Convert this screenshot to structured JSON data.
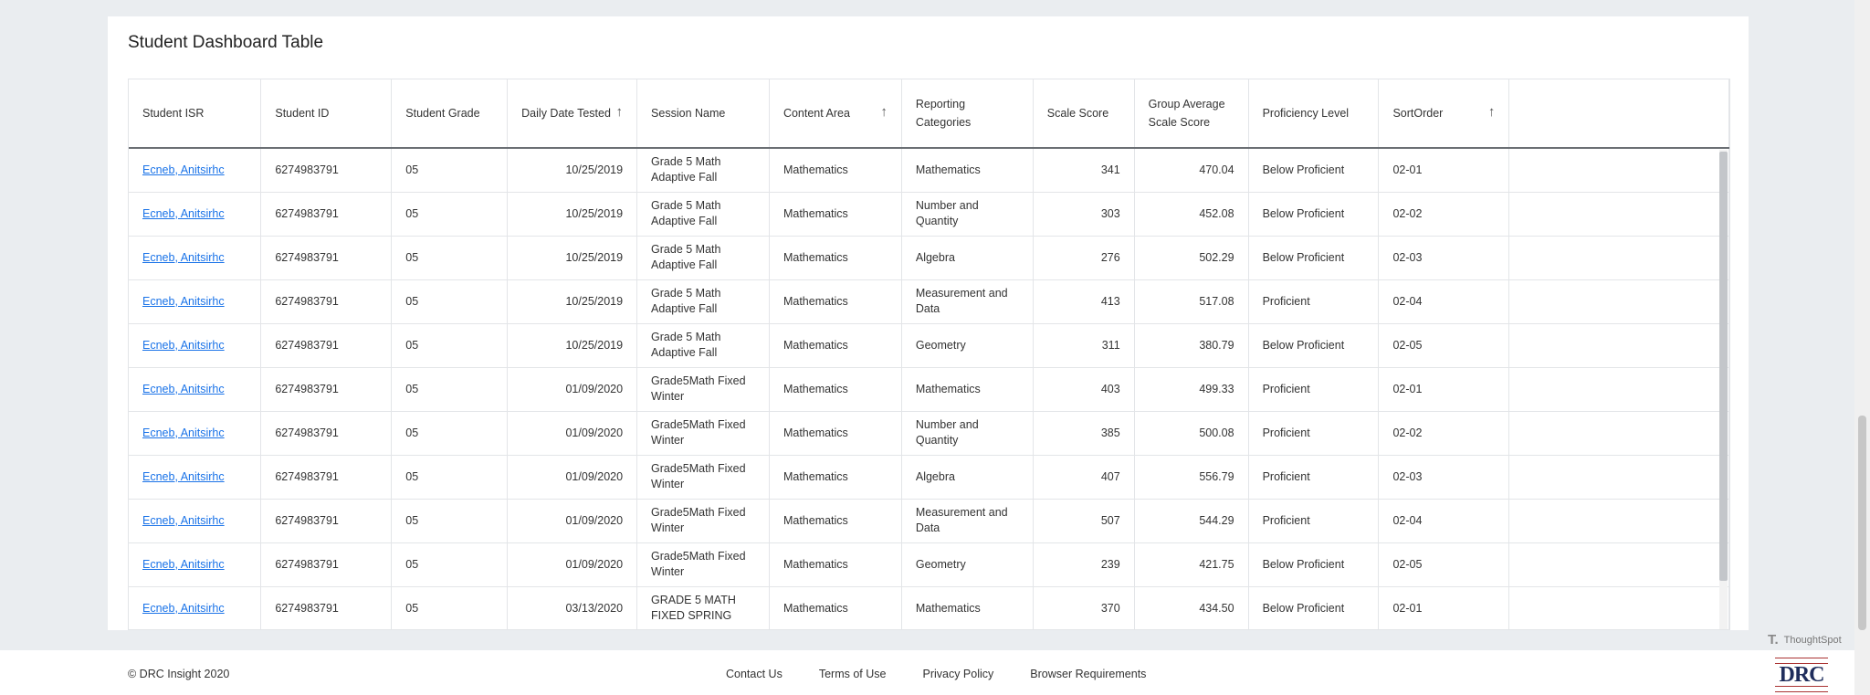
{
  "panel": {
    "title": "Student Dashboard Table"
  },
  "table": {
    "columns": [
      {
        "label": "Student ISR",
        "sort": ""
      },
      {
        "label": "Student ID",
        "sort": ""
      },
      {
        "label": "Student Grade",
        "sort": ""
      },
      {
        "label": "Daily Date Tested",
        "sort": "asc"
      },
      {
        "label": "Session Name",
        "sort": ""
      },
      {
        "label": "Content Area",
        "sort": "asc"
      },
      {
        "label": "Reporting Categories",
        "sort": ""
      },
      {
        "label": "Scale Score",
        "sort": ""
      },
      {
        "label": "Group Average Scale Score",
        "sort": ""
      },
      {
        "label": "Proficiency Level",
        "sort": ""
      },
      {
        "label": "SortOrder",
        "sort": "asc"
      },
      {
        "label": "",
        "sort": ""
      }
    ],
    "rows": [
      [
        "Ecneb, Anitsirhc",
        "6274983791",
        "05",
        "10/25/2019",
        "Grade 5 Math Adaptive Fall",
        "Mathematics",
        "Mathematics",
        "341",
        "470.04",
        "Below Proficient",
        "02-01"
      ],
      [
        "Ecneb, Anitsirhc",
        "6274983791",
        "05",
        "10/25/2019",
        "Grade 5 Math Adaptive Fall",
        "Mathematics",
        "Number and Quantity",
        "303",
        "452.08",
        "Below Proficient",
        "02-02"
      ],
      [
        "Ecneb, Anitsirhc",
        "6274983791",
        "05",
        "10/25/2019",
        "Grade 5 Math Adaptive Fall",
        "Mathematics",
        "Algebra",
        "276",
        "502.29",
        "Below Proficient",
        "02-03"
      ],
      [
        "Ecneb, Anitsirhc",
        "6274983791",
        "05",
        "10/25/2019",
        "Grade 5 Math Adaptive Fall",
        "Mathematics",
        "Measurement and Data",
        "413",
        "517.08",
        "Proficient",
        "02-04"
      ],
      [
        "Ecneb, Anitsirhc",
        "6274983791",
        "05",
        "10/25/2019",
        "Grade 5 Math Adaptive Fall",
        "Mathematics",
        "Geometry",
        "311",
        "380.79",
        "Below Proficient",
        "02-05"
      ],
      [
        "Ecneb, Anitsirhc",
        "6274983791",
        "05",
        "01/09/2020",
        "Grade5Math Fixed Winter",
        "Mathematics",
        "Mathematics",
        "403",
        "499.33",
        "Proficient",
        "02-01"
      ],
      [
        "Ecneb, Anitsirhc",
        "6274983791",
        "05",
        "01/09/2020",
        "Grade5Math Fixed Winter",
        "Mathematics",
        "Number and Quantity",
        "385",
        "500.08",
        "Proficient",
        "02-02"
      ],
      [
        "Ecneb, Anitsirhc",
        "6274983791",
        "05",
        "01/09/2020",
        "Grade5Math Fixed Winter",
        "Mathematics",
        "Algebra",
        "407",
        "556.79",
        "Proficient",
        "02-03"
      ],
      [
        "Ecneb, Anitsirhc",
        "6274983791",
        "05",
        "01/09/2020",
        "Grade5Math Fixed Winter",
        "Mathematics",
        "Measurement and Data",
        "507",
        "544.29",
        "Proficient",
        "02-04"
      ],
      [
        "Ecneb, Anitsirhc",
        "6274983791",
        "05",
        "01/09/2020",
        "Grade5Math Fixed Winter",
        "Mathematics",
        "Geometry",
        "239",
        "421.75",
        "Below Proficient",
        "02-05"
      ],
      [
        "Ecneb, Anitsirhc",
        "6274983791",
        "05",
        "03/13/2020",
        "GRADE 5 MATH FIXED SPRING",
        "Mathematics",
        "Mathematics",
        "370",
        "434.50",
        "Below Proficient",
        "02-01"
      ]
    ]
  },
  "branding": {
    "thoughtspot": "ThoughtSpot",
    "logo": "DRC",
    "logo_top": "DATA RECOGNITION",
    "logo_bottom": "CORPORATION"
  },
  "footer": {
    "copyright": "© DRC Insight 2020",
    "links": [
      "Contact Us",
      "Terms of Use",
      "Privacy Policy",
      "Browser Requirements"
    ]
  },
  "colors": {
    "link": "#1a73e8",
    "background": "#eaedf0"
  }
}
